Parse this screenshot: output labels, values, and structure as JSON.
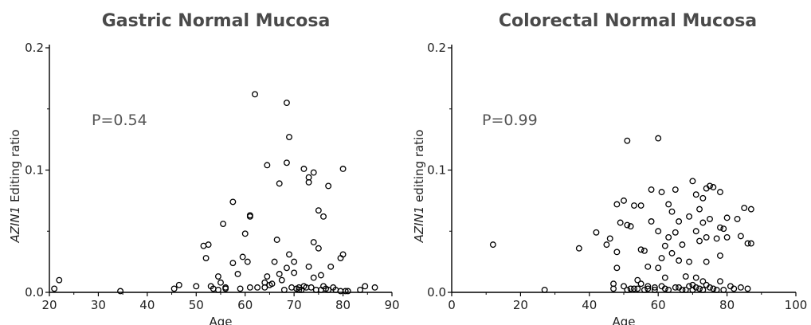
{
  "chart_data": [
    {
      "type": "scatter",
      "title": "Gastric Normal Mucosa",
      "xlabel": "Age",
      "ylabel_italic": "AZIN1",
      "ylabel_rest": " Editing ratio",
      "annotation": "P=0.54",
      "xlim": [
        20,
        90
      ],
      "ylim": [
        0,
        0.2
      ],
      "xticks": [
        "20",
        "30",
        "40",
        "50",
        "60",
        "70",
        "80",
        "90"
      ],
      "yticks": [
        "0.0",
        "0.1",
        "0.2"
      ],
      "marker": "open-circle",
      "points": [
        [
          21,
          0.003
        ],
        [
          22,
          0.01
        ],
        [
          34.5,
          0.001
        ],
        [
          45.5,
          0.003
        ],
        [
          46.5,
          0.006
        ],
        [
          50,
          0.005
        ],
        [
          51.5,
          0.038
        ],
        [
          52.5,
          0.039
        ],
        [
          52,
          0.028
        ],
        [
          53,
          0.005
        ],
        [
          53.5,
          0.003
        ],
        [
          54.5,
          0.013
        ],
        [
          54.5,
          0.002
        ],
        [
          55.5,
          0.056
        ],
        [
          55,
          0.008
        ],
        [
          56,
          0.003
        ],
        [
          56,
          0.004
        ],
        [
          57.5,
          0.074
        ],
        [
          57.5,
          0.024
        ],
        [
          58.5,
          0.015
        ],
        [
          59,
          0.003
        ],
        [
          59.5,
          0.029
        ],
        [
          60,
          0.048
        ],
        [
          60.5,
          0.025
        ],
        [
          61,
          0.063
        ],
        [
          61,
          0.062
        ],
        [
          61,
          0.004
        ],
        [
          62,
          0.162
        ],
        [
          62.5,
          0.004
        ],
        [
          64,
          0.004
        ],
        [
          64,
          0.008
        ],
        [
          64.5,
          0.104
        ],
        [
          64.5,
          0.013
        ],
        [
          65,
          0.006
        ],
        [
          65.5,
          0.007
        ],
        [
          66,
          0.025
        ],
        [
          66.5,
          0.043
        ],
        [
          67,
          0.089
        ],
        [
          67,
          0.015
        ],
        [
          67.5,
          0.01
        ],
        [
          68.5,
          0.155
        ],
        [
          68.5,
          0.106
        ],
        [
          68,
          0.002
        ],
        [
          68.5,
          0.02
        ],
        [
          69,
          0.127
        ],
        [
          69,
          0.031
        ],
        [
          69.5,
          0.004
        ],
        [
          70,
          0.025
        ],
        [
          70,
          0.016
        ],
        [
          70.5,
          0.003
        ],
        [
          71,
          0.004
        ],
        [
          71,
          0.002
        ],
        [
          71.5,
          0.002
        ],
        [
          72,
          0.101
        ],
        [
          72,
          0.005
        ],
        [
          72.5,
          0.004
        ],
        [
          73,
          0.094
        ],
        [
          73,
          0.09
        ],
        [
          73,
          0.021
        ],
        [
          73.5,
          0.004
        ],
        [
          74,
          0.098
        ],
        [
          74,
          0.041
        ],
        [
          74,
          0.012
        ],
        [
          74.5,
          0.002
        ],
        [
          75,
          0.067
        ],
        [
          75,
          0.036
        ],
        [
          75.5,
          0.014
        ],
        [
          75.5,
          0.002
        ],
        [
          76,
          0.062
        ],
        [
          76,
          0.005
        ],
        [
          76.5,
          0.003
        ],
        [
          77,
          0.087
        ],
        [
          77,
          0.002
        ],
        [
          77.5,
          0.021
        ],
        [
          78,
          0.004
        ],
        [
          78.5,
          0.002
        ],
        [
          79.5,
          0.028
        ],
        [
          79.5,
          0.001
        ],
        [
          80,
          0.101
        ],
        [
          80,
          0.031
        ],
        [
          80.5,
          0.001
        ],
        [
          81,
          0.001
        ],
        [
          83.5,
          0.002
        ],
        [
          84.5,
          0.005
        ],
        [
          86.5,
          0.004
        ]
      ]
    },
    {
      "type": "scatter",
      "title": "Colorectal Normal Mucosa",
      "xlabel": "Age",
      "ylabel_italic": "AZIN1",
      "ylabel_rest": " editing ratio",
      "annotation": "P=0.99",
      "xlim": [
        0,
        100
      ],
      "ylim": [
        0,
        0.2
      ],
      "xticks": [
        "0",
        "20",
        "40",
        "60",
        "80",
        "100"
      ],
      "yticks": [
        "0.0",
        "0.1",
        "0.2"
      ],
      "marker": "open-circle",
      "points": [
        [
          12,
          0.039
        ],
        [
          27,
          0.002
        ],
        [
          37,
          0.036
        ],
        [
          42,
          0.049
        ],
        [
          45,
          0.039
        ],
        [
          46,
          0.044
        ],
        [
          47,
          0.007
        ],
        [
          47,
          0.003
        ],
        [
          48,
          0.072
        ],
        [
          48,
          0.033
        ],
        [
          48,
          0.02
        ],
        [
          49,
          0.057
        ],
        [
          50,
          0.075
        ],
        [
          50,
          0.005
        ],
        [
          51,
          0.124
        ],
        [
          51,
          0.055
        ],
        [
          51,
          0.002
        ],
        [
          52,
          0.054
        ],
        [
          52,
          0.003
        ],
        [
          53,
          0.071
        ],
        [
          53,
          0.003
        ],
        [
          54,
          0.01
        ],
        [
          54,
          0.003
        ],
        [
          55,
          0.035
        ],
        [
          55,
          0.071
        ],
        [
          55,
          0.007
        ],
        [
          56,
          0.002
        ],
        [
          56,
          0.034
        ],
        [
          57,
          0.005
        ],
        [
          57,
          0.021
        ],
        [
          57,
          0.003
        ],
        [
          58,
          0.084
        ],
        [
          58,
          0.058
        ],
        [
          59,
          0.004
        ],
        [
          59,
          0.002
        ],
        [
          60,
          0.126
        ],
        [
          60,
          0.05
        ],
        [
          60,
          0.02
        ],
        [
          61,
          0.082
        ],
        [
          61,
          0.028
        ],
        [
          61,
          0.005
        ],
        [
          62,
          0.038
        ],
        [
          62,
          0.012
        ],
        [
          62,
          0.003
        ],
        [
          63,
          0.045
        ],
        [
          63,
          0.072
        ],
        [
          63,
          0.002
        ],
        [
          64,
          0.066
        ],
        [
          64,
          0.032
        ],
        [
          65,
          0.084
        ],
        [
          65,
          0.049
        ],
        [
          65,
          0.004
        ],
        [
          66,
          0.058
        ],
        [
          66,
          0.026
        ],
        [
          66,
          0.004
        ],
        [
          67,
          0.039
        ],
        [
          67,
          0.002
        ],
        [
          68,
          0.013
        ],
        [
          68,
          0.002
        ],
        [
          69,
          0.062
        ],
        [
          69,
          0.025
        ],
        [
          69,
          0.005
        ],
        [
          70,
          0.091
        ],
        [
          70,
          0.006
        ],
        [
          70,
          0.002
        ],
        [
          71,
          0.08
        ],
        [
          71,
          0.05
        ],
        [
          71,
          0.012
        ],
        [
          71,
          0.004
        ],
        [
          72,
          0.068
        ],
        [
          72,
          0.042
        ],
        [
          72,
          0.003
        ],
        [
          73,
          0.077
        ],
        [
          73,
          0.057
        ],
        [
          73,
          0.009
        ],
        [
          73,
          0.002
        ],
        [
          74,
          0.085
        ],
        [
          74,
          0.045
        ],
        [
          74,
          0.025
        ],
        [
          74,
          0.006
        ],
        [
          75,
          0.087
        ],
        [
          75,
          0.06
        ],
        [
          75,
          0.004
        ],
        [
          76,
          0.086
        ],
        [
          76,
          0.003
        ],
        [
          77,
          0.044
        ],
        [
          77,
          0.002
        ],
        [
          78,
          0.082
        ],
        [
          78,
          0.053
        ],
        [
          78,
          0.03
        ],
        [
          78,
          0.009
        ],
        [
          79,
          0.052
        ],
        [
          79,
          0.002
        ],
        [
          80,
          0.061
        ],
        [
          80,
          0.045
        ],
        [
          81,
          0.005
        ],
        [
          82,
          0.003
        ],
        [
          83,
          0.06
        ],
        [
          84,
          0.046
        ],
        [
          84,
          0.004
        ],
        [
          85,
          0.069
        ],
        [
          86,
          0.04
        ],
        [
          86,
          0.003
        ],
        [
          87,
          0.068
        ],
        [
          87,
          0.04
        ]
      ]
    }
  ]
}
